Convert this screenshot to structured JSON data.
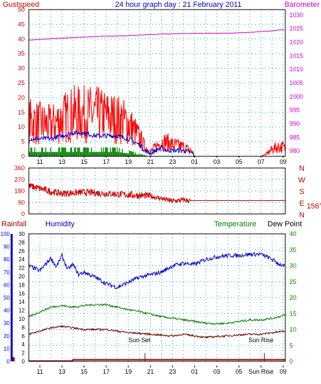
{
  "header": {
    "left_title": "Gustspeed",
    "center_title": "24 hour graph day : 21 February 2011",
    "right_title": "Barometer"
  },
  "time_ticks": [
    "11",
    "13",
    "15",
    "17",
    "19",
    "21",
    "23",
    "01",
    "03",
    "05",
    "07",
    "09"
  ],
  "bottom_time_ticks": [
    "11",
    "13",
    "15",
    "17",
    "19",
    "21",
    "23",
    "01",
    "03",
    "05",
    "Sun Rise",
    "09"
  ],
  "colors": {
    "gust": "#ff0000",
    "average": "#0000cc",
    "calm_bars": "#008000",
    "barometer": "#cc00cc",
    "direction": "#cc0000",
    "humidity": "#0000cc",
    "temperature": "#008000",
    "dew_point": "#660000",
    "rainfall": "#990000",
    "grid": "#00aaaa",
    "axis_pink": "#cc00cc",
    "axis_red": "#cc0000",
    "axis_blue": "#0000cc",
    "axis_green": "#008000"
  },
  "chart_data": [
    {
      "type": "line",
      "x_unit": "hour of day",
      "x_range": [
        10,
        33.2
      ],
      "y_left_ticks": [
        0,
        5,
        10,
        15,
        20,
        25,
        30,
        35,
        40,
        45,
        50
      ],
      "y_right_ticks": [
        980,
        985,
        990,
        995,
        1000,
        1005,
        1010,
        1015,
        1020,
        1025,
        1030
      ],
      "ylim_left": [
        0,
        50
      ],
      "ylim_right": [
        978,
        1032
      ],
      "grid": true,
      "series": [
        {
          "name": "Gustspeed",
          "axis": "left",
          "style": "noisy-line",
          "x": [
            10,
            11,
            12,
            13,
            14,
            15,
            16,
            17,
            18,
            19,
            20,
            20.5,
            21,
            21.5,
            22,
            22.5,
            23,
            24,
            24.8,
            25,
            26,
            27,
            28,
            29,
            30,
            31,
            31.5,
            32,
            32.5,
            33,
            33.2
          ],
          "y": [
            15,
            14,
            13,
            16,
            18,
            18,
            18,
            17,
            16,
            14,
            8,
            4,
            2,
            4,
            6,
            6,
            5,
            4,
            2,
            0,
            0,
            0,
            0,
            0,
            0,
            0,
            1,
            3,
            4,
            4,
            3
          ]
        },
        {
          "name": "",
          "axis": "left",
          "style": "noisy-line",
          "x": [
            10,
            11,
            12,
            13,
            14,
            15,
            16,
            17,
            18,
            19,
            20,
            20.5,
            21,
            21.5,
            22,
            22.5,
            23,
            24,
            24.8,
            25
          ],
          "y": [
            6,
            6,
            6,
            7,
            8,
            8,
            7,
            7,
            7,
            6,
            4,
            2,
            1,
            2,
            3,
            2,
            2,
            2,
            1,
            0
          ]
        },
        {
          "name": "",
          "axis": "left",
          "style": "bars",
          "x": [
            10,
            11,
            12,
            13,
            14,
            15,
            16,
            17,
            18,
            19,
            20,
            21
          ],
          "y": [
            3,
            3,
            3,
            3,
            3,
            3,
            3,
            3,
            3,
            2,
            1,
            0
          ]
        },
        {
          "name": "Barometer",
          "axis": "right",
          "style": "line",
          "x": [
            10,
            12,
            14,
            16,
            18,
            20,
            22,
            24,
            26,
            28,
            30,
            32,
            33.2
          ],
          "y": [
            1020.8,
            1021.3,
            1021.7,
            1022.1,
            1022.3,
            1022.6,
            1023.0,
            1023.2,
            1023.3,
            1023.3,
            1023.6,
            1024.2,
            1024.7
          ]
        }
      ]
    },
    {
      "type": "scatter",
      "x_range": [
        10,
        33.2
      ],
      "y_ticks": [
        0,
        90,
        180,
        270,
        360
      ],
      "ylim": [
        0,
        360
      ],
      "compass_letters": [
        "N",
        "W",
        "S",
        "E",
        "N"
      ],
      "current_direction": "156°",
      "grid": true,
      "series": [
        {
          "name": "",
          "style": "noisy-line",
          "x": [
            10,
            11,
            12,
            13,
            14,
            15,
            16,
            17,
            18,
            19,
            20,
            21,
            22,
            23,
            24,
            24.5,
            25,
            26,
            28,
            30,
            32,
            33.2
          ],
          "y": [
            220,
            200,
            175,
            160,
            165,
            170,
            165,
            160,
            155,
            150,
            145,
            140,
            120,
            100,
            110,
            105,
            105,
            105,
            105,
            105,
            105,
            105
          ]
        }
      ]
    },
    {
      "type": "line",
      "x_range": [
        10,
        33.2
      ],
      "labels": {
        "rainfall": "Rainfall",
        "humidity": "Humidity",
        "temperature": "Temperature",
        "dew_point": "Dew Point"
      },
      "rainfall_ticks": [
        0,
        10,
        20,
        30,
        40,
        50,
        60,
        70,
        80,
        90,
        100
      ],
      "rainfall_ylim": [
        0,
        100
      ],
      "humidity_ticks": [
        0,
        2,
        4,
        6,
        8,
        10,
        12,
        14,
        16,
        18,
        20,
        22,
        24,
        26,
        28,
        30
      ],
      "temperature_ticks": [
        0,
        5,
        10,
        15,
        20,
        25,
        30,
        35,
        40
      ],
      "temperature_ylim": [
        0,
        40
      ],
      "annotations": [
        "Sun Set",
        "Sun Rise"
      ],
      "grid": true,
      "series": [
        {
          "name": "Humidity",
          "axis": "rainfall",
          "style": "noisy-line",
          "x": [
            10,
            10.5,
            11,
            11.5,
            12,
            12.5,
            13,
            13.5,
            14,
            14.5,
            15,
            16,
            17,
            18,
            19,
            20,
            21,
            22,
            23,
            24,
            25,
            26,
            27,
            28,
            29,
            30,
            31,
            32,
            32.5,
            33.2
          ],
          "y": [
            75,
            73,
            71,
            76,
            81,
            74,
            83,
            72,
            76,
            68,
            70,
            66,
            61,
            58,
            62,
            66,
            68,
            70,
            75,
            77,
            76,
            80,
            82,
            83,
            83,
            84,
            84,
            80,
            77,
            74
          ]
        },
        {
          "name": "Temperature",
          "axis": "temperature",
          "style": "noisy-line",
          "x": [
            10,
            11,
            12,
            13,
            14,
            15,
            16,
            17,
            18,
            19,
            20,
            21,
            22,
            23,
            24,
            25,
            26,
            27,
            28,
            29,
            30,
            31,
            32,
            33.2
          ],
          "y": [
            14,
            15.5,
            17,
            17.5,
            17,
            17.5,
            17.8,
            17.8,
            17,
            16.2,
            15.6,
            14.8,
            14,
            13.5,
            13,
            12.5,
            12,
            11.8,
            12,
            12.5,
            13,
            13,
            13.5,
            14.5
          ]
        },
        {
          "name": "Dew Point",
          "axis": "temperature",
          "style": "noisy-line",
          "x": [
            10,
            11,
            12,
            13,
            14,
            15,
            16,
            17,
            18,
            19,
            20,
            21,
            22,
            23,
            24,
            25,
            26,
            27,
            28,
            29,
            30,
            31,
            32,
            33.2
          ],
          "y": [
            8.5,
            9.5,
            10.5,
            11,
            10.5,
            10,
            10,
            10,
            9.5,
            9,
            8.8,
            8.5,
            8.2,
            8,
            8.5,
            8,
            7.5,
            7.8,
            8,
            8.3,
            8.5,
            8.5,
            9,
            9.5
          ]
        },
        {
          "name": "Rainfall",
          "axis": "rainfall",
          "style": "step",
          "x": [
            10,
            13.9,
            14,
            24.8,
            25,
            33.2
          ],
          "y": [
            0,
            0,
            1,
            1,
            1,
            1
          ]
        }
      ]
    }
  ]
}
